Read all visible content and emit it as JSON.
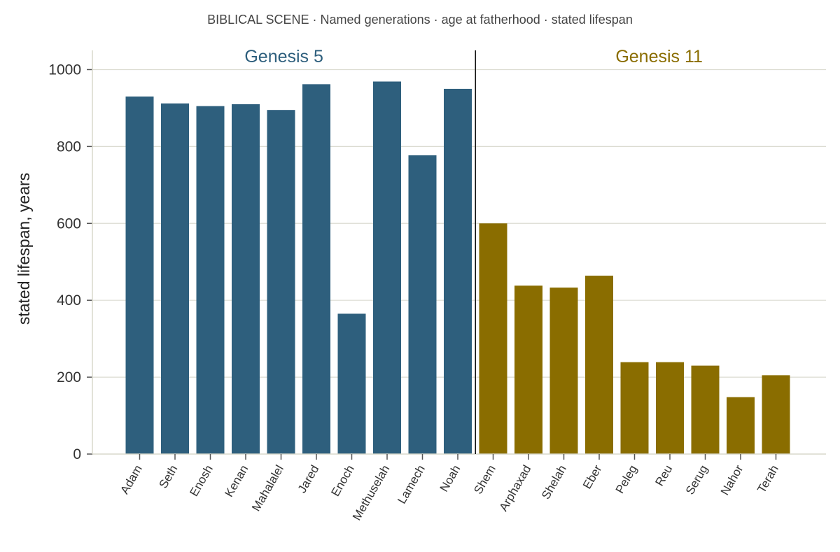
{
  "chart_data": {
    "type": "bar",
    "title": "BIBLICAL SCENE · Named generations · age at fatherhood · stated lifespan",
    "xlabel": "",
    "ylabel": "stated lifespan, years",
    "ylim": [
      0,
      1050
    ],
    "yticks": [
      0,
      200,
      400,
      600,
      800,
      1000
    ],
    "grid": "horizontal",
    "categories": [
      "Adam",
      "Seth",
      "Enosh",
      "Kenan",
      "Mahalalel",
      "Jared",
      "Enoch",
      "Methuselah",
      "Lamech",
      "Noah",
      "Shem",
      "Arphaxad",
      "Shelah",
      "Eber",
      "Peleg",
      "Reu",
      "Serug",
      "Nahor",
      "Terah"
    ],
    "values": [
      930,
      912,
      905,
      910,
      895,
      962,
      365,
      969,
      777,
      950,
      600,
      438,
      433,
      464,
      239,
      239,
      230,
      148,
      205
    ],
    "groups": [
      {
        "label": "Genesis 5",
        "start": 0,
        "end": 9,
        "color": "#2e5f7d"
      },
      {
        "label": "Genesis 11",
        "start": 10,
        "end": 18,
        "color": "#8a6d00"
      }
    ],
    "divider_after_index": 9
  }
}
